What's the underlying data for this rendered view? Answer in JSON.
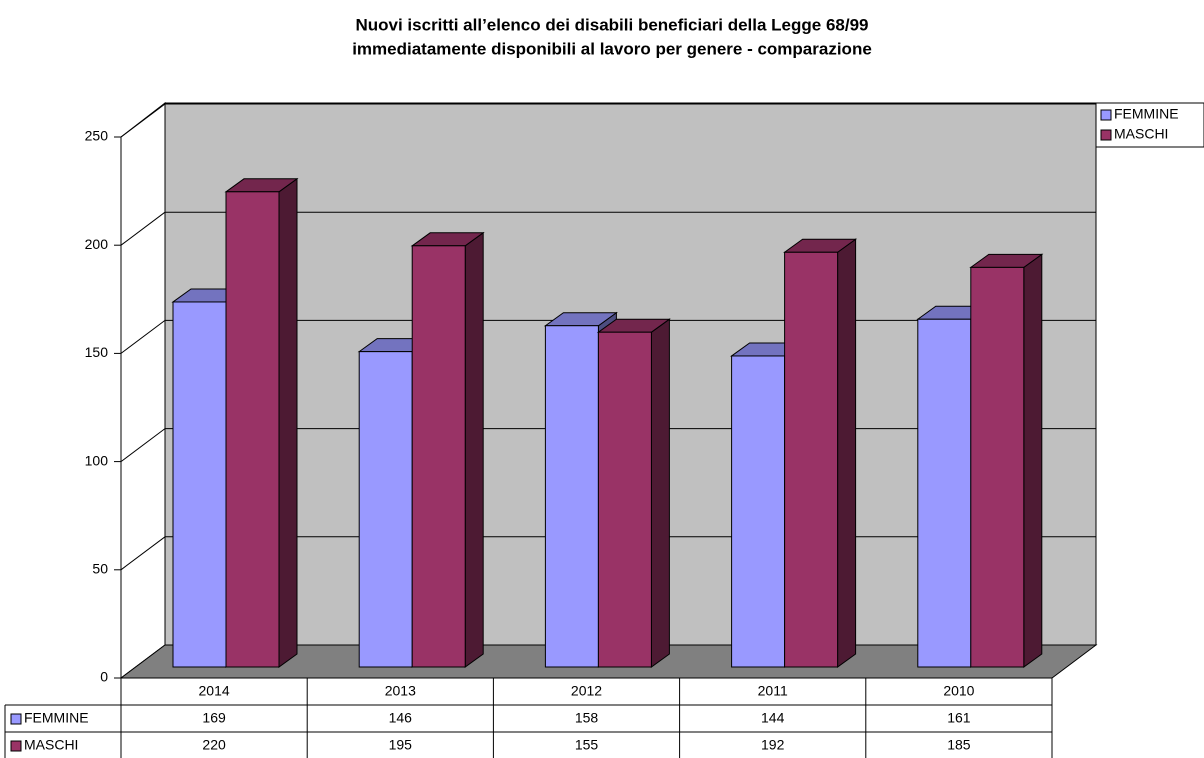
{
  "chart_data": {
    "type": "bar3d",
    "title": [
      "Nuovi iscritti all’elenco dei disabili beneficiari della Legge 68/99",
      "immediatamente disponibili al lavoro per genere - comparazione"
    ],
    "categories": [
      "2014",
      "2013",
      "2012",
      "2011",
      "2010"
    ],
    "series": [
      {
        "name": "FEMMINE",
        "color": "#9999ff",
        "values": [
          169,
          146,
          158,
          144,
          161
        ]
      },
      {
        "name": "MASCHI",
        "color": "#993366",
        "values": [
          220,
          195,
          155,
          192,
          185
        ]
      }
    ],
    "ylim": [
      0,
      250
    ],
    "yticks": [
      0,
      50,
      100,
      150,
      200,
      250
    ],
    "grid": true,
    "legend": "top-right"
  }
}
